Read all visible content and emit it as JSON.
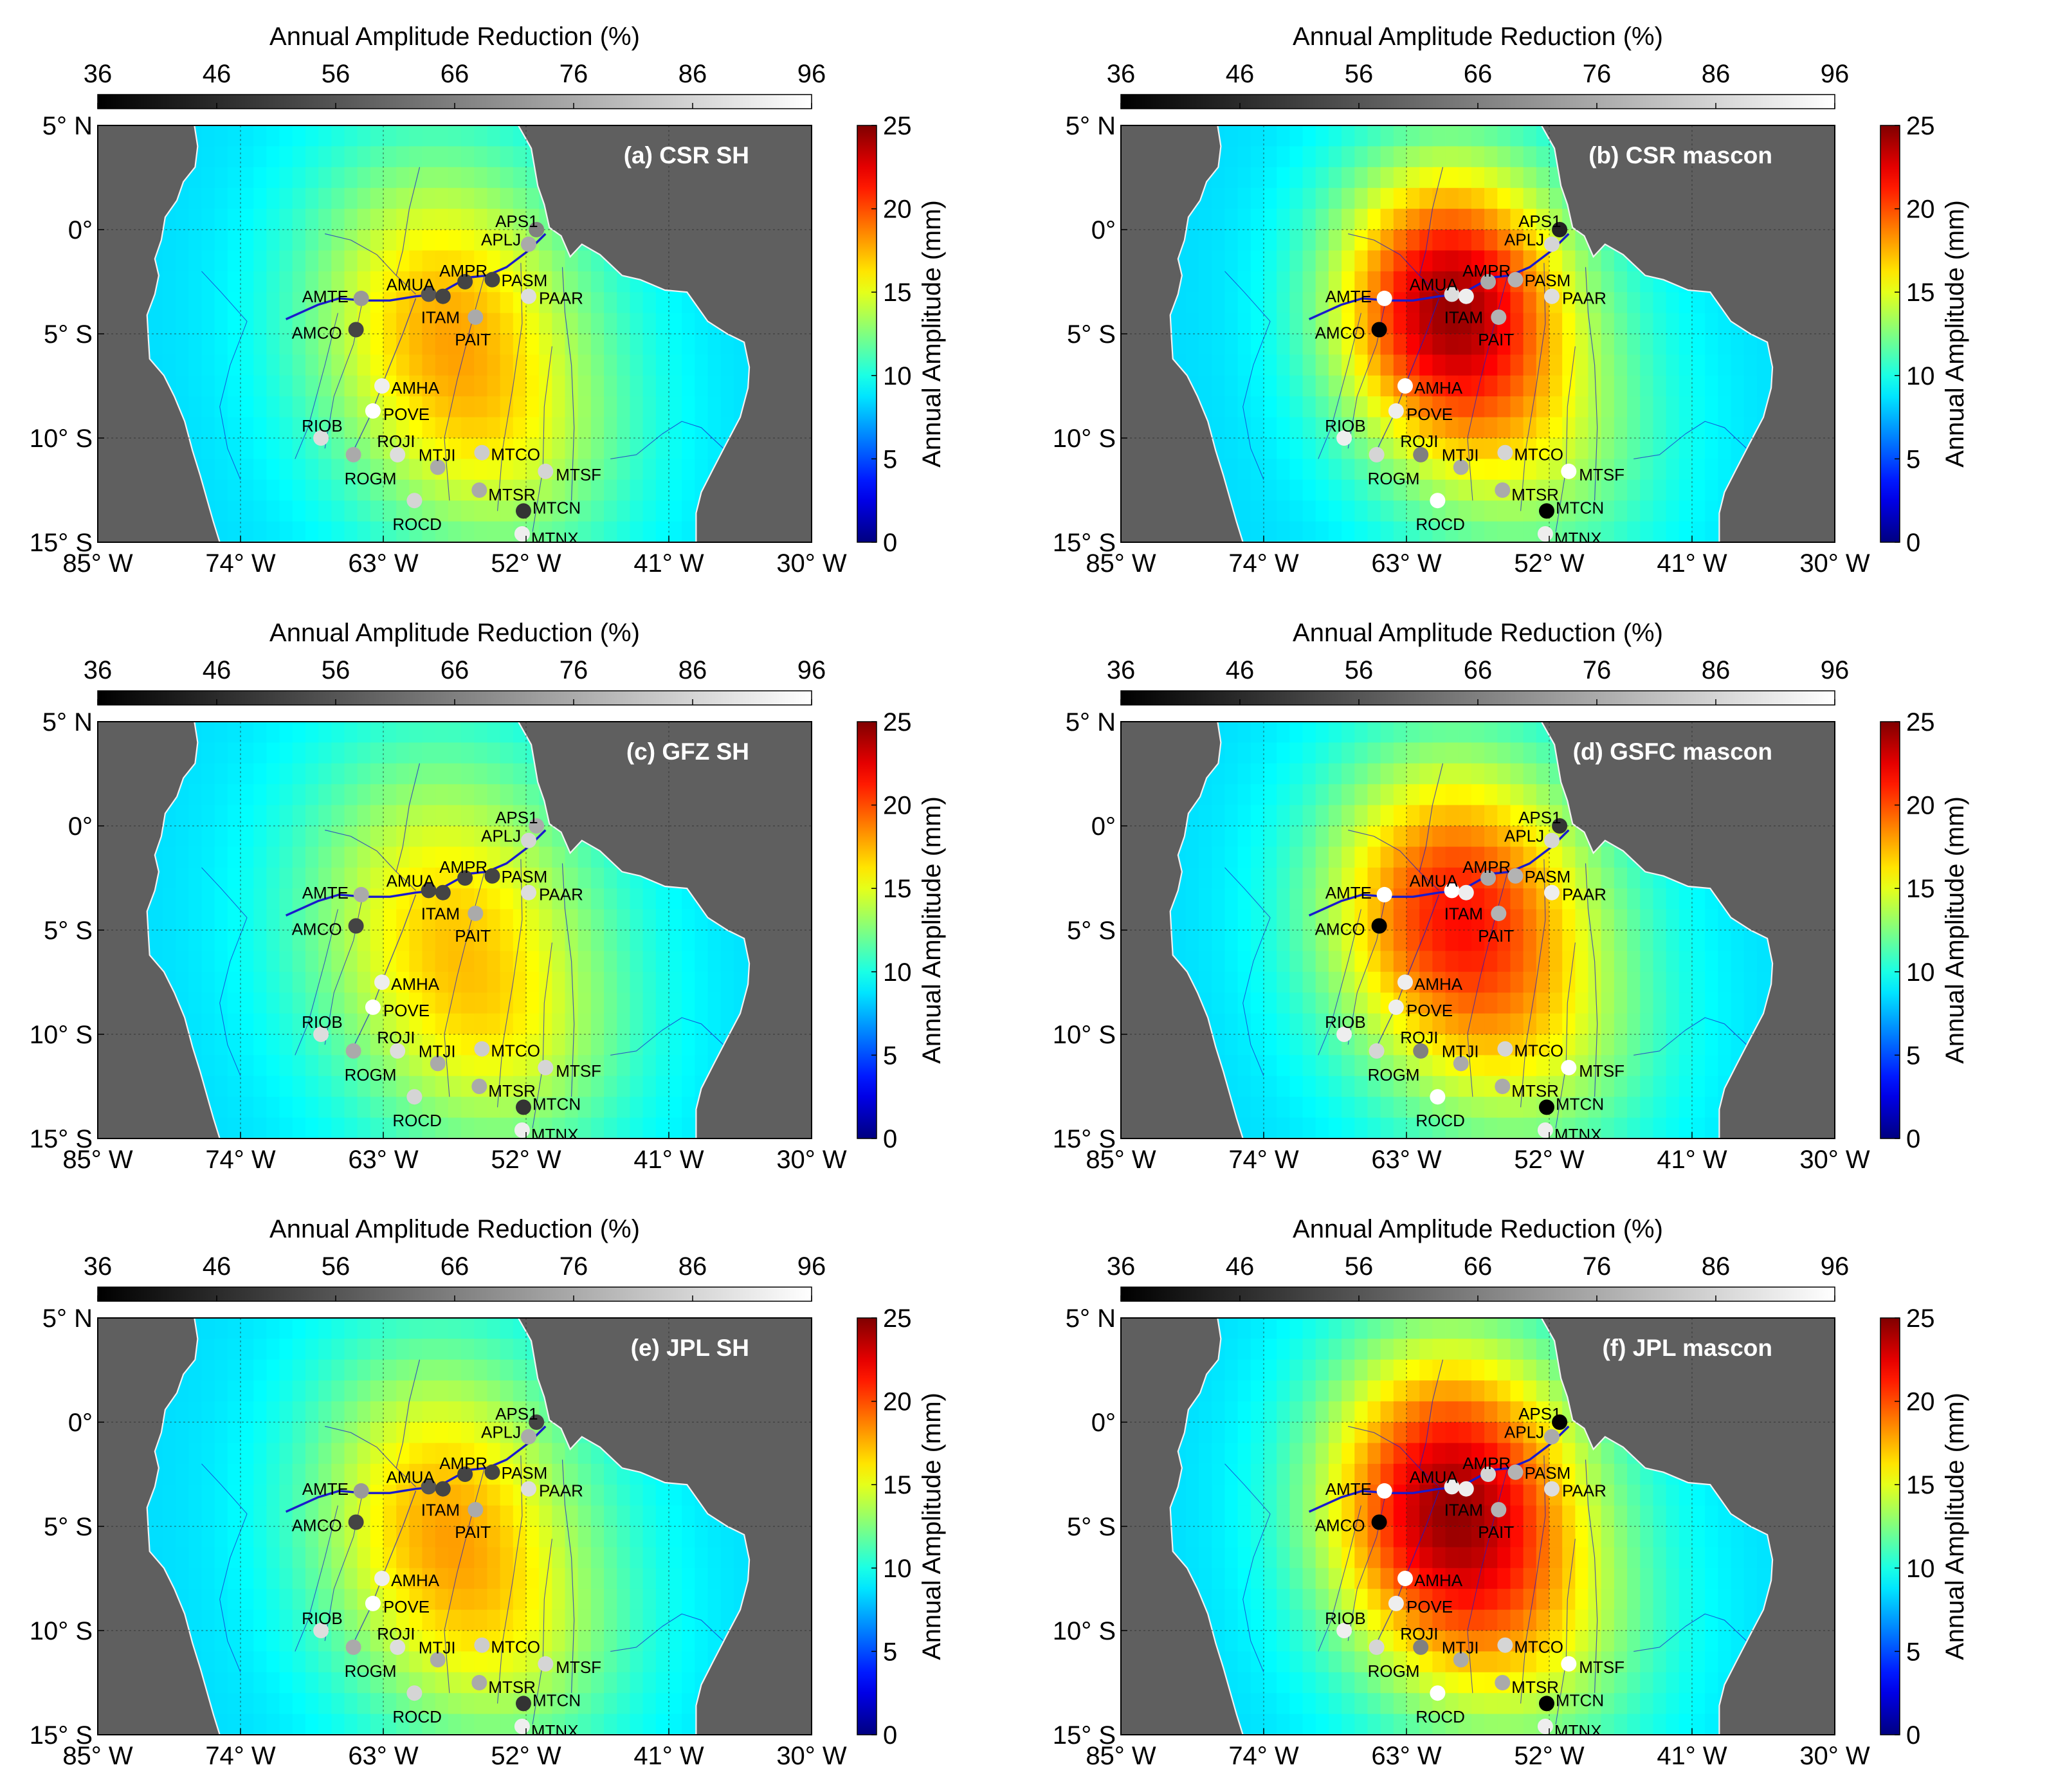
{
  "figure": {
    "reduction_colorbar": {
      "title": "Annual Amplitude Reduction (%)",
      "ticks": [
        "36",
        "46",
        "56",
        "66",
        "76",
        "86",
        "96"
      ],
      "range": [
        36,
        96
      ],
      "colors": [
        "#000000",
        "#ffffff"
      ]
    },
    "amplitude_colorbar": {
      "label": "Annual Amplitude (mm)",
      "ticks": [
        "0",
        "5",
        "10",
        "15",
        "20",
        "25"
      ],
      "range": [
        0,
        25
      ],
      "colormap": "jet"
    },
    "lat_labels": [
      "5° N",
      "0°",
      "5° S",
      "10° S",
      "15° S"
    ],
    "lat_values": [
      5,
      0,
      -5,
      -10,
      -15
    ],
    "lon_labels": [
      "85° W",
      "74° W",
      "63° W",
      "52° W",
      "41° W",
      "30° W"
    ],
    "lon_values": [
      -85,
      -74,
      -63,
      -52,
      -41,
      -30
    ],
    "extent": {
      "lon": [
        -85,
        -30
      ],
      "lat": [
        -15,
        5
      ]
    },
    "colors": {
      "ocean": "#5f5f5f",
      "coast": "#f2f2f2",
      "river": "#1a1acc",
      "marker_outline": "none"
    },
    "stations": [
      {
        "name": "APS1",
        "lon": -51.2,
        "lat": 0.0
      },
      {
        "name": "APLJ",
        "lon": -51.8,
        "lat": -0.7
      },
      {
        "name": "AMUA",
        "lon": -59.5,
        "lat": -3.1
      },
      {
        "name": "AMPR",
        "lon": -56.7,
        "lat": -2.5
      },
      {
        "name": "PASM",
        "lon": -54.6,
        "lat": -2.4
      },
      {
        "name": "ITAM",
        "lon": -58.4,
        "lat": -3.2
      },
      {
        "name": "AMTE",
        "lon": -64.7,
        "lat": -3.3
      },
      {
        "name": "PAAR",
        "lon": -51.8,
        "lat": -3.2
      },
      {
        "name": "AMCO",
        "lon": -65.1,
        "lat": -4.8
      },
      {
        "name": "PAIT",
        "lon": -55.9,
        "lat": -4.2
      },
      {
        "name": "AMHA",
        "lon": -63.1,
        "lat": -7.5
      },
      {
        "name": "RIOB",
        "lon": -67.8,
        "lat": -10.0
      },
      {
        "name": "POVE",
        "lon": -63.8,
        "lat": -8.7
      },
      {
        "name": "ROJI",
        "lon": -61.9,
        "lat": -10.8
      },
      {
        "name": "MTJI",
        "lon": -58.8,
        "lat": -11.4
      },
      {
        "name": "MTCO",
        "lon": -55.4,
        "lat": -10.7
      },
      {
        "name": "MTSF",
        "lon": -50.5,
        "lat": -11.6
      },
      {
        "name": "ROGM",
        "lon": -65.3,
        "lat": -10.8
      },
      {
        "name": "MTSR",
        "lon": -55.6,
        "lat": -12.5
      },
      {
        "name": "MTCN",
        "lon": -52.2,
        "lat": -13.5
      },
      {
        "name": "ROCD",
        "lon": -60.6,
        "lat": -13.0
      },
      {
        "name": "MTNX",
        "lon": -52.3,
        "lat": -14.6
      }
    ],
    "panels": [
      {
        "title": "(a) CSR SH",
        "hotspot": {
          "lon": -59.5,
          "lat": -3.8,
          "peak_mm": 18.0,
          "sx": 7.2,
          "sy": 5.6
        },
        "reduction": [
          66,
          76,
          56,
          52,
          52,
          52,
          72,
          88,
          52,
          76,
          92,
          88,
          96,
          88,
          76,
          84,
          86,
          76,
          76,
          48,
          86,
          92
        ]
      },
      {
        "title": "(b) CSR mascon",
        "hotspot": {
          "lon": -60.0,
          "lat": -3.5,
          "peak_mm": 25.0,
          "sx": 6.2,
          "sy": 4.8
        },
        "reduction": [
          44,
          86,
          88,
          76,
          78,
          92,
          96,
          88,
          36,
          78,
          96,
          92,
          92,
          66,
          76,
          86,
          96,
          86,
          76,
          36,
          96,
          92
        ]
      },
      {
        "title": "(c) GFZ SH",
        "hotspot": {
          "lon": -59.5,
          "lat": -4.0,
          "peak_mm": 17.0,
          "sx": 7.6,
          "sy": 5.8
        },
        "reduction": [
          76,
          86,
          52,
          52,
          52,
          52,
          76,
          88,
          52,
          76,
          92,
          88,
          96,
          88,
          76,
          84,
          86,
          76,
          76,
          48,
          86,
          92
        ]
      },
      {
        "title": "(d) GSFC mascon",
        "hotspot": {
          "lon": -59.8,
          "lat": -3.8,
          "peak_mm": 22.0,
          "sx": 7.0,
          "sy": 5.2
        },
        "reduction": [
          48,
          86,
          96,
          76,
          78,
          92,
          96,
          92,
          36,
          78,
          92,
          92,
          92,
          66,
          76,
          86,
          96,
          86,
          76,
          36,
          96,
          92
        ]
      },
      {
        "title": "(e) JPL SH",
        "hotspot": {
          "lon": -59.5,
          "lat": -4.0,
          "peak_mm": 18.0,
          "sx": 7.0,
          "sy": 5.6
        },
        "reduction": [
          52,
          76,
          56,
          52,
          52,
          52,
          72,
          88,
          52,
          76,
          92,
          88,
          96,
          88,
          76,
          84,
          86,
          76,
          76,
          48,
          86,
          92
        ]
      },
      {
        "title": "(f) JPL mascon",
        "hotspot": {
          "lon": -60.0,
          "lat": -3.8,
          "peak_mm": 25.0,
          "sx": 6.8,
          "sy": 5.4
        },
        "reduction": [
          36,
          76,
          92,
          86,
          78,
          92,
          96,
          88,
          36,
          78,
          96,
          92,
          92,
          66,
          76,
          86,
          96,
          86,
          76,
          36,
          96,
          92
        ]
      }
    ]
  }
}
